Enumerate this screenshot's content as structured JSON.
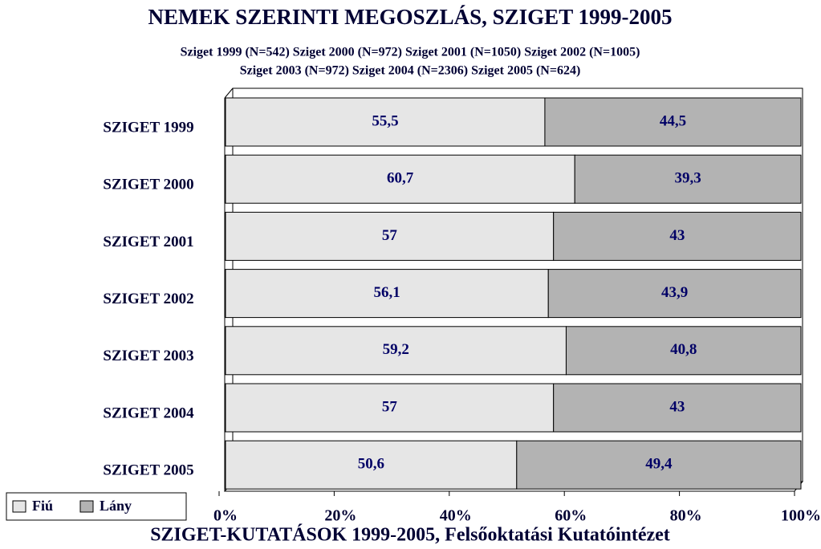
{
  "chart_data": {
    "type": "bar",
    "orientation": "horizontal",
    "stacked": true,
    "title": "NEMEK SZERINTI MEGOSZLÁS, SZIGET 1999-2005",
    "subtitle": [
      "Sziget 1999 (N=542) Sziget 2000 (N=972) Sziget 2001 (N=1050) Sziget 2002 (N=1005)",
      "Sziget 2003  (N=972) Sziget 2004 (N=2306) Sziget 2005 (N=624)"
    ],
    "caption": "SZIGET-KUTATÁSOK 1999-2005, Felsőoktatási Kutatóintézet",
    "categories": [
      "SZIGET 1999",
      "SZIGET 2000",
      "SZIGET 2001",
      "SZIGET 2002",
      "SZIGET 2003",
      "SZIGET 2004",
      "SZIGET 2005"
    ],
    "series": [
      {
        "name": "Fiú",
        "color": "#e6e6e6",
        "values": [
          55.5,
          60.7,
          57,
          56.1,
          59.2,
          57,
          50.6
        ],
        "value_labels": [
          "55,5",
          "60,7",
          "57",
          "56,1",
          "59,2",
          "57",
          "50,6"
        ]
      },
      {
        "name": "Lány",
        "color": "#b3b3b3",
        "values": [
          44.5,
          39.3,
          43,
          43.9,
          40.8,
          43,
          49.4
        ],
        "value_labels": [
          "44,5",
          "39,3",
          "43",
          "43,9",
          "40,8",
          "43",
          "49,4"
        ]
      }
    ],
    "xlim": [
      0,
      100
    ],
    "xticks": [
      {
        "value": 0,
        "label": "0%"
      },
      {
        "value": 20,
        "label": "20%"
      },
      {
        "value": 40,
        "label": "40%"
      },
      {
        "value": 60,
        "label": "60%"
      },
      {
        "value": 80,
        "label": "80%"
      },
      {
        "value": 100,
        "label": "100%"
      }
    ],
    "legend": "bottom-left"
  }
}
